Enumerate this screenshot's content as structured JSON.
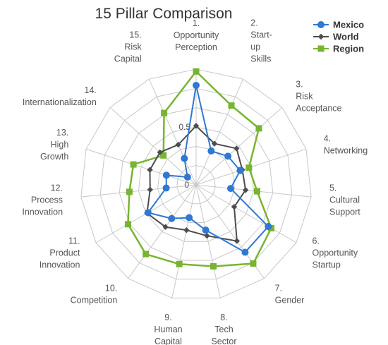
{
  "chart_data": {
    "type": "radar",
    "title": "15 Pillar Comparison",
    "axes": [
      [
        "1.",
        "Opportunity",
        "Perception"
      ],
      [
        "2.",
        "Start-",
        "up",
        "Skills"
      ],
      [
        "3.",
        "Risk",
        "Acceptance"
      ],
      [
        "4.",
        "Networking"
      ],
      [
        "5.",
        "Cultural",
        "Support"
      ],
      [
        "6.",
        "Opportunity",
        "Startup"
      ],
      [
        "7.",
        "Gender"
      ],
      [
        "8.",
        "Tech",
        "Sector"
      ],
      [
        "9.",
        "Human",
        "Capital"
      ],
      [
        "10.",
        "Competition"
      ],
      [
        "11.",
        "Product",
        "Innovation"
      ],
      [
        "12.",
        "Process",
        "Innovation"
      ],
      [
        "13.",
        "High",
        "Growth"
      ],
      [
        "14.",
        "Internationalization"
      ],
      [
        "15.",
        "Risk",
        "Capital"
      ]
    ],
    "tick_labels": [
      "0",
      "0.5"
    ],
    "rmin": 0,
    "rmax": 1,
    "grid_levels": 6,
    "legend_position": "top-right",
    "series": [
      {
        "name": "Mexico",
        "color": "#2f78d3",
        "marker": "circle",
        "values": [
          0.86,
          0.32,
          0.37,
          0.4,
          0.3,
          0.72,
          0.72,
          0.4,
          0.29,
          0.36,
          0.48,
          0.26,
          0.27,
          0.1,
          0.25
        ]
      },
      {
        "name": "World",
        "color": "#4d4d4d",
        "marker": "diamond",
        "values": [
          0.51,
          0.39,
          0.47,
          0.42,
          0.43,
          0.38,
          0.6,
          0.45,
          0.4,
          0.45,
          0.49,
          0.4,
          0.42,
          0.42,
          0.38
        ]
      },
      {
        "name": "Region",
        "color": "#77b530",
        "marker": "square",
        "values": [
          0.98,
          0.75,
          0.73,
          0.48,
          0.53,
          0.75,
          0.84,
          0.72,
          0.7,
          0.74,
          0.68,
          0.58,
          0.57,
          0.38,
          0.68
        ]
      }
    ]
  }
}
